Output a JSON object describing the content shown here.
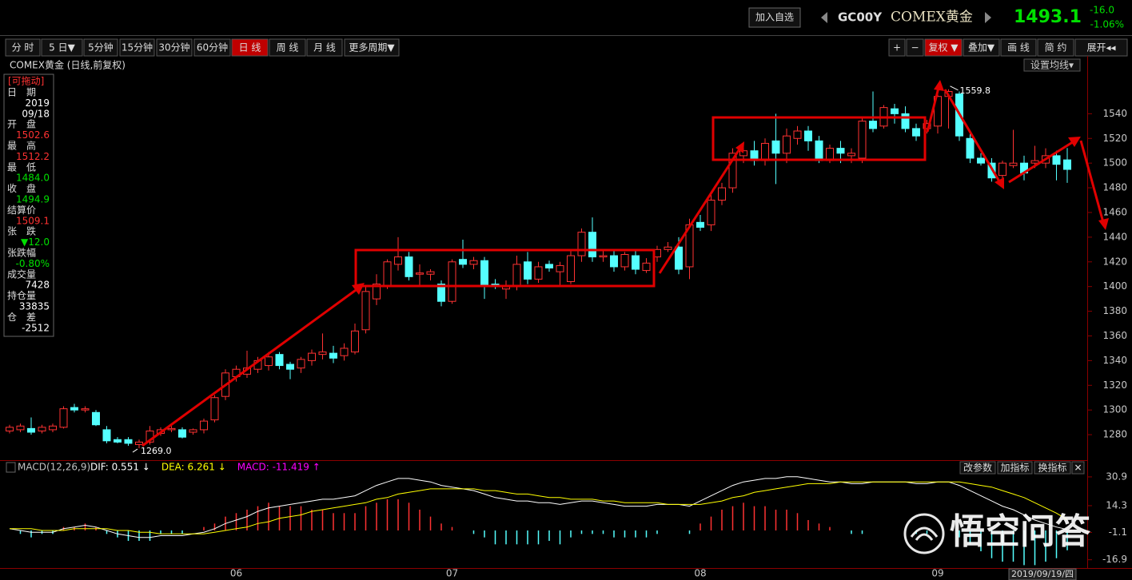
{
  "header": {
    "add_button": "加入自选",
    "code": "GC00Y",
    "name": "COMEX黄金",
    "price": "1493.1",
    "change": "-16.0",
    "change_pct": "-1.06%"
  },
  "toolbar": {
    "left": [
      "分 时",
      "5 日▼",
      "5分钟",
      "15分钟",
      "30分钟",
      "60分钟",
      "日 线",
      "周 线",
      "月 线",
      "更多周期▼"
    ],
    "active_left": 6,
    "right": [
      "+",
      "−",
      "复权 ▼",
      "叠加▼",
      "画 线",
      "简 约",
      "展开◂◂"
    ],
    "active_right": 2
  },
  "info_panel": {
    "header": "[可拖动]",
    "rows": [
      {
        "label": "日　期",
        "lines": [
          "2019",
          "09/18"
        ],
        "color": "#ffffff"
      },
      {
        "label": "开　盘",
        "lines": [
          "1502.6"
        ],
        "color": "#ff3232"
      },
      {
        "label": "最　高",
        "lines": [
          "1512.2"
        ],
        "color": "#ff3232"
      },
      {
        "label": "最　低",
        "lines": [
          "1484.0"
        ],
        "color": "#00e000"
      },
      {
        "label": "收　盘",
        "lines": [
          "1494.9"
        ],
        "color": "#00e000"
      },
      {
        "label": "结算价",
        "lines": [
          "1509.1"
        ],
        "color": "#ff3232"
      },
      {
        "label": "张　跌",
        "lines": [
          "▼12.0"
        ],
        "color": "#00e000"
      },
      {
        "label": "张跌幅",
        "lines": [
          "-0.80%"
        ],
        "color": "#00e000"
      },
      {
        "label": "成交量",
        "lines": [
          "7428"
        ],
        "color": "#ffffff"
      },
      {
        "label": "持仓量",
        "lines": [
          "33835"
        ],
        "color": "#ffffff"
      },
      {
        "label": "仓　差",
        "lines": [
          "-2512"
        ],
        "color": "#ffffff"
      }
    ]
  },
  "chart_data": [
    {
      "type": "candlestick",
      "title": "COMEX黄金 (日线,前复权)",
      "button": "设置均线▾",
      "up_color": "#ff3232",
      "down_color": "#54ffff",
      "ylim": [
        1260,
        1570
      ],
      "yticks": [
        1280,
        1300,
        1320,
        1340,
        1360,
        1380,
        1400,
        1420,
        1440,
        1460,
        1480,
        1500,
        1520,
        1540
      ],
      "annotations": [
        {
          "value": 1269,
          "label": "1269.0"
        },
        {
          "value": 1559.8,
          "label": "1559.8"
        }
      ],
      "open": [
        1283,
        1284,
        1285,
        1283,
        1284,
        1286,
        1302,
        1300,
        1298,
        1284,
        1276,
        1276,
        1272,
        1274,
        1281,
        1284,
        1284,
        1282,
        1284,
        1292,
        1311,
        1327,
        1329,
        1333,
        1336,
        1345,
        1337,
        1334,
        1340,
        1345,
        1346,
        1344,
        1347,
        1365,
        1390,
        1400,
        1418,
        1424,
        1410,
        1410,
        1402,
        1388,
        1422,
        1418,
        1421,
        1402,
        1398,
        1400,
        1420,
        1406,
        1418,
        1412,
        1404,
        1425,
        1444,
        1424,
        1425,
        1416,
        1425,
        1413,
        1424,
        1430,
        1432,
        1416,
        1452,
        1450,
        1470,
        1480,
        1506,
        1510,
        1502,
        1518,
        1508,
        1520,
        1526,
        1518,
        1502,
        1512,
        1506,
        1504,
        1534,
        1530,
        1544,
        1540,
        1528,
        1528,
        1530,
        1554,
        1556,
        1520,
        1504,
        1500,
        1490,
        1498,
        1500,
        1500,
        1500,
        1506,
        1502.6
      ],
      "high": [
        1288,
        1289,
        1294,
        1288,
        1289,
        1303,
        1305,
        1303,
        1300,
        1287,
        1278,
        1278,
        1276,
        1287,
        1286,
        1287,
        1286,
        1285,
        1293,
        1312,
        1333,
        1336,
        1348,
        1343,
        1347,
        1347,
        1339,
        1343,
        1349,
        1362,
        1352,
        1354,
        1370,
        1400,
        1410,
        1422,
        1440,
        1428,
        1418,
        1414,
        1405,
        1422,
        1438,
        1424,
        1424,
        1406,
        1405,
        1425,
        1428,
        1420,
        1421,
        1420,
        1430,
        1447,
        1456,
        1430,
        1430,
        1428,
        1430,
        1423,
        1433,
        1436,
        1440,
        1455,
        1458,
        1475,
        1484,
        1512,
        1514,
        1518,
        1520,
        1540,
        1528,
        1530,
        1530,
        1522,
        1515,
        1518,
        1512,
        1538,
        1558,
        1547,
        1548,
        1546,
        1532,
        1535,
        1558,
        1559.8,
        1558,
        1524,
        1508,
        1504,
        1502,
        1527,
        1506,
        1514,
        1512,
        1510,
        1512.2
      ],
      "low": [
        1281,
        1282,
        1280,
        1281,
        1282,
        1285,
        1298,
        1298,
        1287,
        1273,
        1273,
        1271,
        1269,
        1272,
        1279,
        1282,
        1277,
        1280,
        1281,
        1290,
        1308,
        1323,
        1326,
        1330,
        1332,
        1333,
        1325,
        1330,
        1336,
        1341,
        1338,
        1340,
        1345,
        1362,
        1385,
        1398,
        1413,
        1405,
        1400,
        1405,
        1384,
        1386,
        1415,
        1414,
        1390,
        1398,
        1390,
        1397,
        1402,
        1403,
        1412,
        1401,
        1402,
        1420,
        1420,
        1420,
        1412,
        1413,
        1410,
        1411,
        1420,
        1428,
        1410,
        1406,
        1445,
        1445,
        1466,
        1476,
        1500,
        1498,
        1498,
        1483,
        1500,
        1515,
        1510,
        1500,
        1500,
        1500,
        1500,
        1500,
        1525,
        1528,
        1532,
        1525,
        1518,
        1524,
        1524,
        1528,
        1518,
        1500,
        1498,
        1485,
        1486,
        1496,
        1486,
        1496,
        1496,
        1486,
        1484
      ],
      "close": [
        1286,
        1287,
        1282,
        1286,
        1287,
        1301,
        1300,
        1301,
        1288,
        1275,
        1274,
        1273,
        1274,
        1283,
        1284,
        1285,
        1278,
        1284,
        1291,
        1310,
        1330,
        1333,
        1334,
        1340,
        1343,
        1336,
        1333,
        1341,
        1346,
        1347,
        1342,
        1350,
        1364,
        1396,
        1402,
        1420,
        1424,
        1408,
        1411,
        1412,
        1388,
        1420,
        1418,
        1421,
        1400,
        1400,
        1401,
        1418,
        1406,
        1416,
        1415,
        1417,
        1425,
        1444,
        1424,
        1425,
        1416,
        1426,
        1414,
        1419,
        1430,
        1432,
        1414,
        1450,
        1448,
        1470,
        1480,
        1508,
        1510,
        1502,
        1516,
        1508,
        1522,
        1526,
        1518,
        1502,
        1512,
        1508,
        1508,
        1534,
        1528,
        1545,
        1540,
        1528,
        1522,
        1532,
        1554,
        1558,
        1522,
        1504,
        1500,
        1488,
        1500,
        1500,
        1492,
        1502,
        1506,
        1499,
        1494.9
      ]
    },
    {
      "type": "macd",
      "title": "MACD(12,26,9)",
      "buttons": [
        "改参数",
        "加指标",
        "换指标",
        "✕"
      ],
      "cursor_date": "2019/09/19/四",
      "watermark": "悟空问答",
      "ylim": [
        -21.2,
        36.4
      ],
      "yticks": [
        30.9,
        14.3,
        -1.1,
        -16.9
      ],
      "up_color": "#ff3232",
      "down_color": "#54ffff",
      "categories": [
        null,
        null,
        null,
        null,
        null,
        null,
        null,
        null,
        null,
        null,
        null,
        null,
        null,
        null,
        null,
        null,
        null,
        null,
        null,
        null,
        null,
        "06",
        null,
        null,
        null,
        null,
        null,
        null,
        null,
        null,
        null,
        null,
        null,
        null,
        null,
        null,
        null,
        null,
        null,
        null,
        null,
        "07",
        null,
        null,
        null,
        null,
        null,
        null,
        null,
        null,
        null,
        null,
        null,
        null,
        null,
        null,
        null,
        null,
        null,
        null,
        null,
        null,
        null,
        null,
        "08",
        null,
        null,
        null,
        null,
        null,
        null,
        null,
        null,
        null,
        null,
        null,
        null,
        null,
        null,
        null,
        null,
        null,
        null,
        null,
        null,
        null,
        "09",
        null,
        null,
        null,
        null,
        null,
        null,
        null,
        null,
        null,
        null,
        null,
        null
      ],
      "series": [
        {
          "name": "DIF: 0.551 ↓",
          "color": "#ffffff",
          "type": "line",
          "values": [
            1,
            0,
            -1,
            -1,
            -1,
            1,
            2,
            3,
            2,
            0,
            -2,
            -3,
            -4,
            -4,
            -3,
            -3,
            -3,
            -2,
            -1,
            1,
            4,
            6,
            8,
            11,
            13,
            14,
            15,
            16,
            17,
            18,
            18,
            19,
            20,
            23,
            26,
            28,
            30,
            30,
            29,
            28,
            26,
            25,
            24,
            23,
            21,
            19,
            18,
            17,
            17,
            16,
            16,
            15,
            16,
            17,
            17,
            16,
            15,
            14,
            14,
            14,
            15,
            15,
            15,
            14,
            17,
            20,
            23,
            26,
            28,
            29,
            30,
            30,
            31,
            31,
            30,
            29,
            28,
            28,
            27,
            27,
            28,
            28,
            28,
            28,
            27,
            27,
            28,
            28,
            26,
            23,
            20,
            17,
            14,
            12,
            9,
            6,
            4,
            2,
            0.551
          ]
        },
        {
          "name": "DEA: 6.261 ↓",
          "color": "#ffff00",
          "type": "line",
          "values": [
            1,
            1,
            1,
            0,
            0,
            0,
            1,
            1,
            1,
            1,
            0,
            0,
            -1,
            -1,
            -2,
            -2,
            -2,
            -2,
            -2,
            -1,
            0,
            1,
            2,
            4,
            5,
            7,
            8,
            9,
            11,
            12,
            13,
            14,
            15,
            16,
            18,
            19,
            21,
            22,
            23,
            24,
            24,
            24,
            24,
            24,
            23,
            23,
            22,
            21,
            21,
            20,
            19,
            19,
            18,
            18,
            18,
            17,
            17,
            16,
            16,
            16,
            16,
            15,
            15,
            15,
            15,
            16,
            17,
            19,
            20,
            22,
            23,
            24,
            25,
            26,
            27,
            27,
            27,
            28,
            28,
            28,
            28,
            28,
            28,
            28,
            28,
            28,
            28,
            28,
            28,
            27,
            26,
            25,
            23,
            21,
            19,
            16,
            13,
            10,
            6.261
          ]
        },
        {
          "name": "MACD: -11.419 ↑",
          "color": "#ff00ff",
          "type": "histogram",
          "values": [
            0,
            -2,
            -4,
            -2,
            -2,
            2,
            2,
            4,
            2,
            -2,
            -4,
            -6,
            -6,
            -6,
            -2,
            -2,
            -2,
            0,
            2,
            4,
            8,
            10,
            12,
            14,
            16,
            14,
            14,
            14,
            12,
            12,
            10,
            10,
            10,
            14,
            16,
            18,
            18,
            16,
            12,
            8,
            4,
            2,
            0,
            -2,
            -4,
            -8,
            -8,
            -8,
            -8,
            -8,
            -6,
            -8,
            -4,
            -2,
            -2,
            -2,
            -4,
            -4,
            -4,
            -4,
            -2,
            0,
            0,
            -2,
            4,
            8,
            12,
            14,
            16,
            14,
            14,
            12,
            12,
            10,
            6,
            4,
            2,
            0,
            -2,
            -2,
            0,
            0,
            0,
            0,
            -2,
            -2,
            0,
            0,
            -4,
            -8,
            -12,
            -16,
            -18,
            -18,
            -20,
            -20,
            -18,
            -16,
            -11.419
          ]
        }
      ]
    }
  ]
}
